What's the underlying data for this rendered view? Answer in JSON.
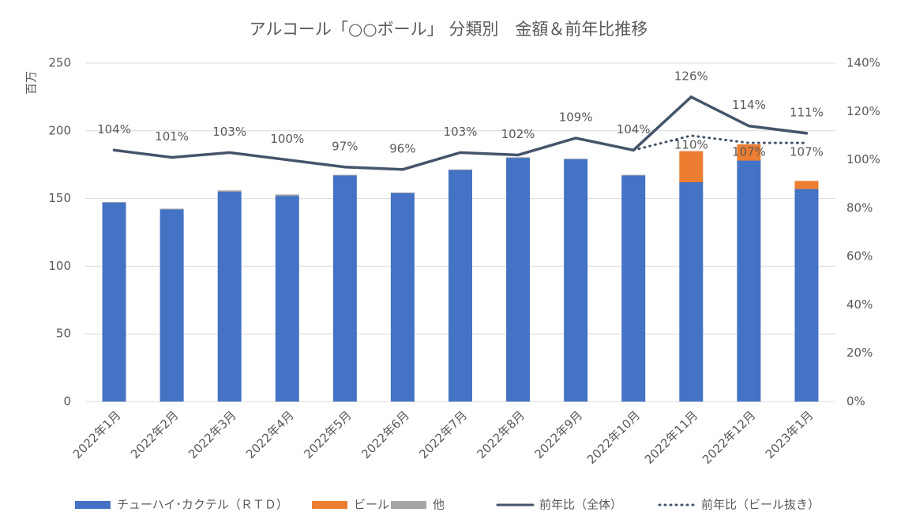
{
  "chart_data": {
    "type": "bar",
    "title": "アルコール「○○ボール」 分類別　金額＆前年比推移",
    "y_label": "百万",
    "categories": [
      "2022年1月",
      "2022年2月",
      "2022年3月",
      "2022年4月",
      "2022年5月",
      "2022年6月",
      "2022年7月",
      "2022年8月",
      "2022年9月",
      "2022年10月",
      "2022年11月",
      "2022年12月",
      "2023年1月"
    ],
    "stacked": true,
    "series": [
      {
        "name": "チューハイ･カクテル（ＲＴＤ）",
        "color": "#4472c4",
        "values": [
          147,
          142,
          155,
          152,
          167,
          154,
          171,
          180,
          179,
          167,
          162,
          178,
          157
        ]
      },
      {
        "name": "ビール",
        "color": "#ed7d31",
        "values": [
          0,
          0,
          0,
          0,
          0,
          0,
          0,
          0,
          0,
          0,
          23,
          12,
          6
        ]
      },
      {
        "name": "他",
        "color": "#a5a5a5",
        "values": [
          0.5,
          0.5,
          1,
          1,
          0.5,
          0.5,
          0.5,
          0.5,
          0.5,
          0.5,
          0,
          0,
          0
        ]
      },
      {
        "name": "前年比（全体）",
        "type": "line",
        "axis": "y2",
        "color": "#44546a",
        "dash": "solid",
        "values": [
          104,
          101,
          103,
          100,
          97,
          96,
          103,
          102,
          109,
          104,
          126,
          114,
          111
        ],
        "value_labels": [
          "104%",
          "101%",
          "103%",
          "100%",
          "97%",
          "96%",
          "103%",
          "102%",
          "109%",
          "104%",
          "126%",
          "114%",
          "111%"
        ]
      },
      {
        "name": "前年比（ビール抜き）",
        "type": "line",
        "axis": "y2",
        "color": "#44546a",
        "dash": "dotted",
        "values": [
          null,
          null,
          null,
          null,
          null,
          null,
          null,
          null,
          null,
          104,
          110,
          107,
          107
        ],
        "value_labels": [
          null,
          null,
          null,
          null,
          null,
          null,
          null,
          null,
          null,
          null,
          "110%",
          "107%",
          "107%"
        ]
      }
    ],
    "ylim": [
      0,
      250
    ],
    "yticks": [
      0,
      50,
      100,
      150,
      200,
      250
    ],
    "y2lim": [
      0,
      140
    ],
    "y2ticks": [
      {
        "value": 0,
        "label": "0%"
      },
      {
        "value": 20,
        "label": "20%"
      },
      {
        "value": 40,
        "label": "40%"
      },
      {
        "value": 60,
        "label": "60%"
      },
      {
        "value": 80,
        "label": "80%"
      },
      {
        "value": 100,
        "label": "100%"
      },
      {
        "value": 120,
        "label": "120%"
      },
      {
        "value": 140,
        "label": "140%"
      }
    ],
    "grid": true,
    "legend": "bottom"
  }
}
